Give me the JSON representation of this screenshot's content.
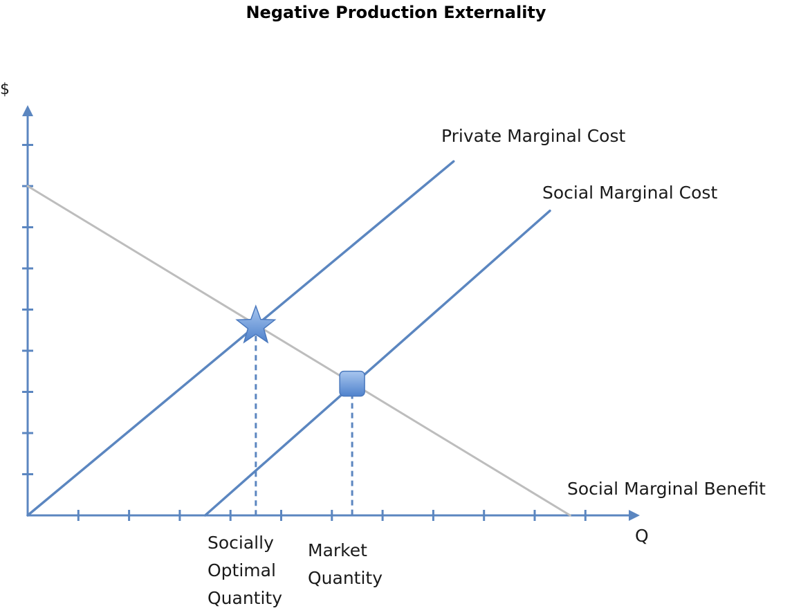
{
  "chart_data": {
    "type": "line",
    "title": "Negative Production Externality",
    "xlabel": "Q",
    "ylabel": "$",
    "xlim": [
      0,
      12
    ],
    "ylim": [
      0,
      10
    ],
    "grid": false,
    "legend": "none",
    "series": [
      {
        "name": "Private Marginal Cost",
        "color": "#5b86c0",
        "x": [
          0,
          8.4
        ],
        "y": [
          0,
          8.6
        ]
      },
      {
        "name": "Social Marginal Cost",
        "color": "#5b86c0",
        "x": [
          3.5,
          10.3
        ],
        "y": [
          0,
          7.4
        ]
      },
      {
        "name": "Social Marginal Benefit",
        "color": "#bdbdbd",
        "x": [
          0,
          10.7
        ],
        "y": [
          8.0,
          0
        ]
      }
    ],
    "markers": [
      {
        "shape": "star",
        "x": 4.5,
        "y": 4.6,
        "color": "#6f9ad6",
        "label": "Socially Optimal Quantity"
      },
      {
        "shape": "square",
        "x": 6.4,
        "y": 3.2,
        "color": "#6f9ad6",
        "label": "Market Quantity"
      }
    ],
    "axis_color": "#5b86c0"
  }
}
